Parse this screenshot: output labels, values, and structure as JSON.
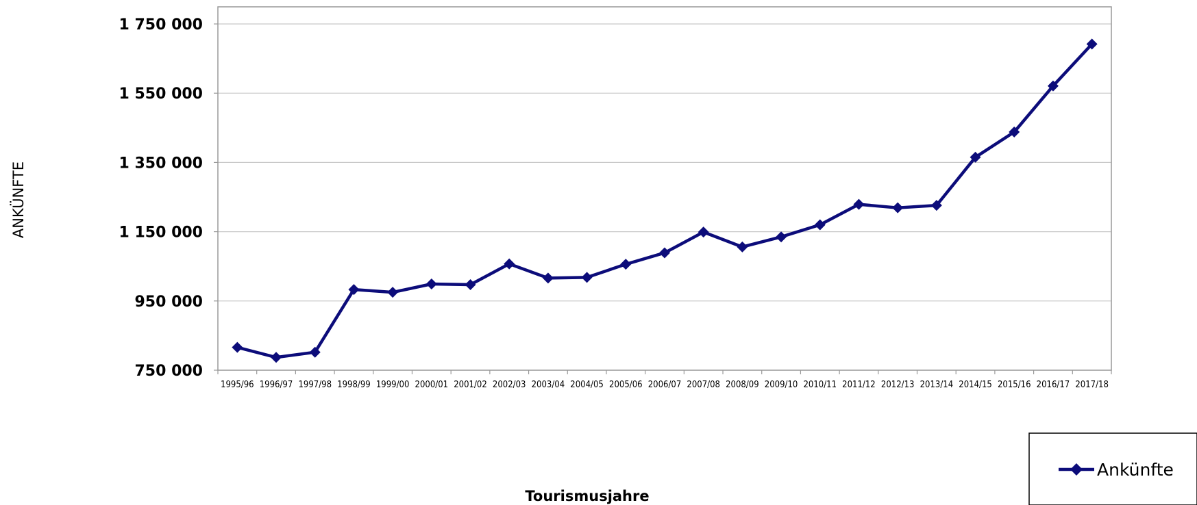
{
  "chart_data": {
    "type": "line",
    "xlabel": "Tourismusjahre",
    "ylabel": "ANKÜNFTE",
    "ylim": [
      750000,
      1750000
    ],
    "yticks": [
      750000,
      950000,
      1150000,
      1350000,
      1550000,
      1750000
    ],
    "ytick_labels": [
      "750 000",
      "950 000",
      "1 150 000",
      "1 350 000",
      "1 550 000",
      "1 750 000"
    ],
    "grid": "horizontal",
    "legend_position": "bottom-right",
    "categories": [
      "1995/96",
      "1996/97",
      "1997/98",
      "1998/99",
      "1999/00",
      "2000/01",
      "2001/02",
      "2002/03",
      "2003/04",
      "2004/05",
      "2005/06",
      "2006/07",
      "2007/08",
      "2008/09",
      "2009/10",
      "2010/11",
      "2011/12",
      "2012/13",
      "2013/14",
      "2014/15",
      "2015/16",
      "2016/17",
      "2017/18"
    ],
    "series": [
      {
        "name": "Ankünfte",
        "color": "#0c0c7a",
        "marker": "diamond",
        "values": [
          816000,
          787000,
          802000,
          983000,
          975000,
          999000,
          997000,
          1057000,
          1016000,
          1018000,
          1056000,
          1089000,
          1149000,
          1106000,
          1135000,
          1170000,
          1229000,
          1219000,
          1226000,
          1365000,
          1438000,
          1571000,
          1692000
        ]
      }
    ]
  }
}
